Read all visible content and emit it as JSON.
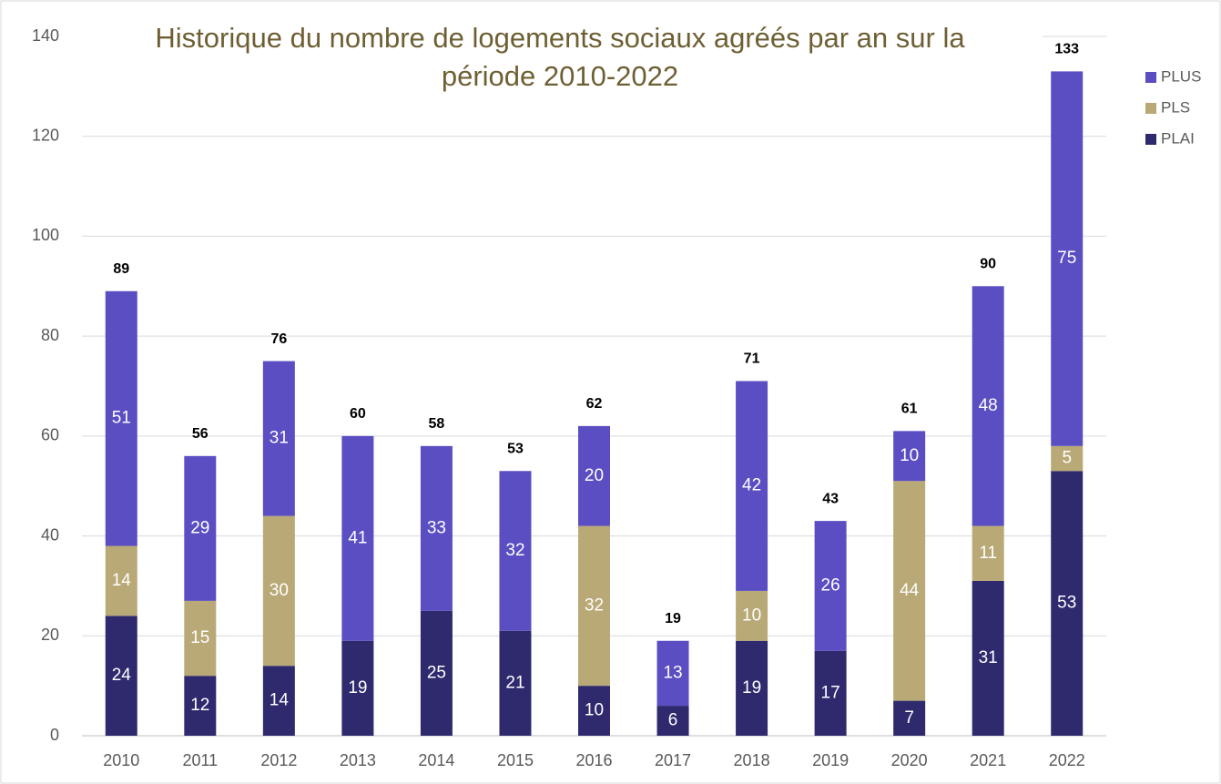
{
  "chart_data": {
    "type": "stacked_bar",
    "title": [
      "Historique du nombre de logements sociaux agréés par an sur la",
      "période 2010-2022"
    ],
    "categories": [
      "2010",
      "2011",
      "2012",
      "2013",
      "2014",
      "2015",
      "2016",
      "2017",
      "2018",
      "2019",
      "2020",
      "2021",
      "2022"
    ],
    "series": [
      {
        "name": "PLAI",
        "color": "#2f2a6e",
        "values": [
          24,
          12,
          14,
          19,
          25,
          21,
          10,
          6,
          19,
          17,
          7,
          31,
          53
        ]
      },
      {
        "name": "PLS",
        "color": "#b9a976",
        "values": [
          14,
          15,
          30,
          null,
          null,
          null,
          32,
          null,
          10,
          null,
          44,
          11,
          5
        ]
      },
      {
        "name": "PLUS",
        "color": "#5a4ec2",
        "values": [
          51,
          29,
          31,
          41,
          33,
          32,
          20,
          13,
          42,
          26,
          10,
          48,
          75
        ]
      }
    ],
    "totals": [
      89,
      56,
      76,
      60,
      58,
      53,
      62,
      19,
      71,
      43,
      61,
      90,
      133
    ],
    "ylim": [
      0,
      140
    ],
    "yticks": [
      0,
      20,
      40,
      60,
      80,
      100,
      120,
      140
    ],
    "grid": true,
    "legend": "top-right"
  }
}
